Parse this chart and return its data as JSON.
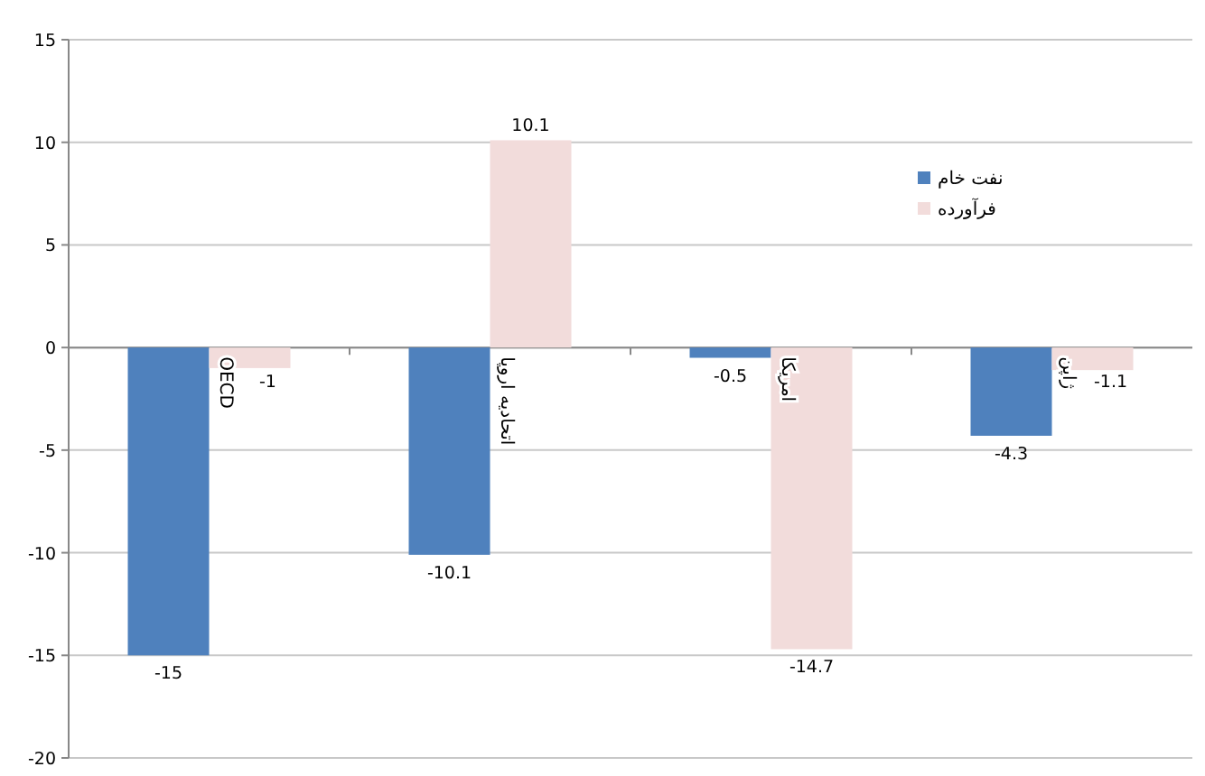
{
  "chart_data": {
    "type": "bar",
    "categories": [
      "OECD",
      "اتحادیه اروپا",
      "امریکا",
      "ژاپن"
    ],
    "series": [
      {
        "name": "نفت خام",
        "color": "#4f81bd",
        "values": [
          -15,
          -10.1,
          -0.5,
          -4.3
        ]
      },
      {
        "name": "فرآورده",
        "color": "#f2dcdb",
        "values": [
          -1,
          10.1,
          -14.7,
          -1.1
        ]
      }
    ],
    "ylim": [
      -20,
      15
    ],
    "yticks": [
      -20,
      -15,
      -10,
      -5,
      0,
      5,
      10,
      15
    ],
    "grid": "y",
    "legend": "right",
    "data_labels": true
  }
}
